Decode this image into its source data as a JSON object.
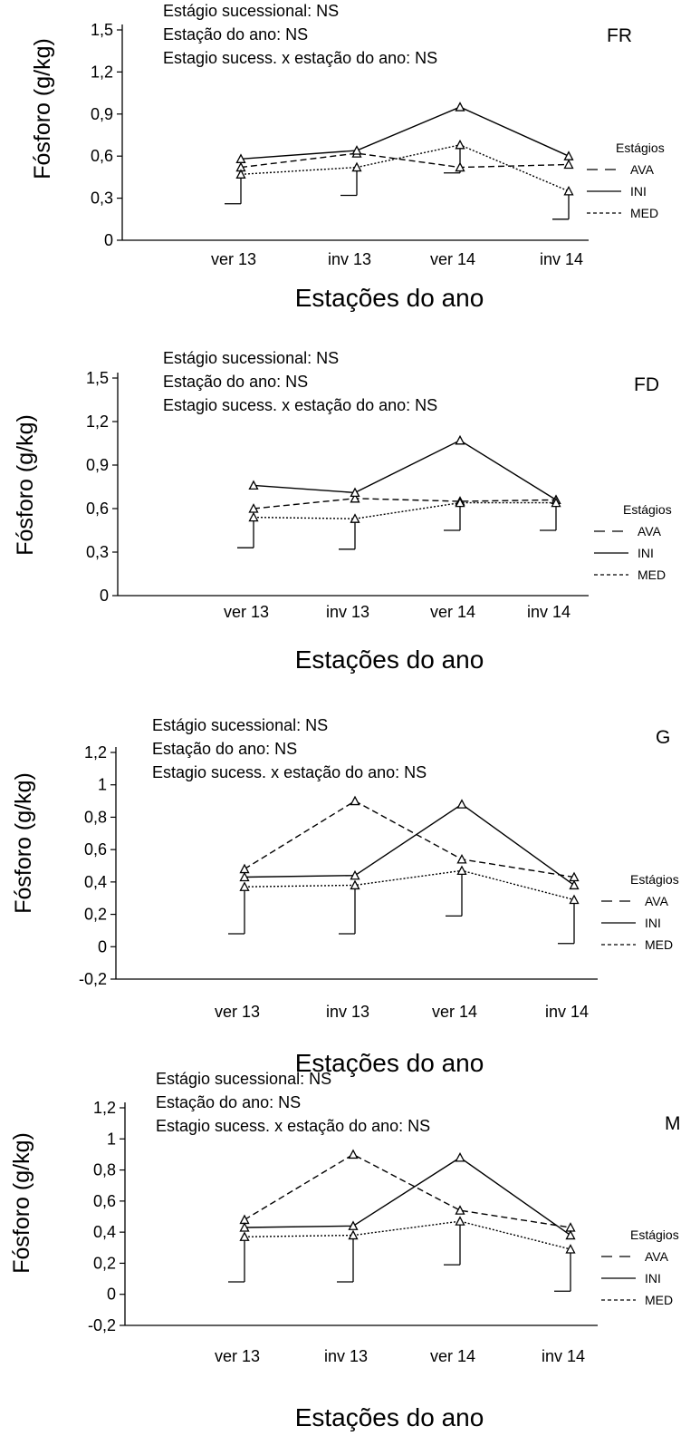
{
  "chart_data": [
    {
      "type": "line",
      "panel": "FR",
      "stats": [
        "Estágio sucessional: NS",
        "Estação do ano: NS",
        "Estagio sucess. x estação do ano: NS"
      ],
      "ylabel": "Fósforo (g/kg)",
      "xlabel": "Estações do ano",
      "categories": [
        "ver 13",
        "inv 13",
        "ver 14",
        "inv 14"
      ],
      "ylim": [
        0,
        1.5
      ],
      "yticks": [
        0,
        0.3,
        0.6,
        0.9,
        1.2,
        1.5
      ],
      "ytick_labels": [
        "0",
        "0,3",
        "0,6",
        "0,9",
        "1,2",
        "1,5"
      ],
      "legend_title": "Estágios",
      "series": [
        {
          "name": "AVA",
          "style": "dashed",
          "values": [
            0.52,
            0.62,
            0.52,
            0.54
          ]
        },
        {
          "name": "INI",
          "style": "solid",
          "values": [
            0.58,
            0.64,
            0.95,
            0.6
          ]
        },
        {
          "name": "MED",
          "style": "dotted",
          "values": [
            0.47,
            0.52,
            0.68,
            0.35
          ]
        }
      ],
      "error_bars": [
        {
          "low": 0.26,
          "high": 0.47
        },
        {
          "low": 0.32,
          "high": 0.52
        },
        {
          "low": 0.48,
          "high": 0.68
        },
        {
          "low": 0.15,
          "high": 0.35
        }
      ]
    },
    {
      "type": "line",
      "panel": "FD",
      "stats": [
        "Estágio sucessional: NS",
        "Estação do ano: NS",
        "Estagio sucess. x estação do ano: NS"
      ],
      "ylabel": "Fósforo (g/kg)",
      "xlabel": "Estações do ano",
      "categories": [
        "ver 13",
        "inv 13",
        "ver 14",
        "inv 14"
      ],
      "ylim": [
        0,
        1.5
      ],
      "yticks": [
        0,
        0.3,
        0.6,
        0.9,
        1.2,
        1.5
      ],
      "ytick_labels": [
        "0",
        "0,3",
        "0,6",
        "0,9",
        "1,2",
        "1,5"
      ],
      "legend_title": "Estágios",
      "series": [
        {
          "name": "AVA",
          "style": "dashed",
          "values": [
            0.6,
            0.67,
            0.65,
            0.66
          ]
        },
        {
          "name": "INI",
          "style": "solid",
          "values": [
            0.76,
            0.71,
            1.07,
            0.66
          ]
        },
        {
          "name": "MED",
          "style": "dotted",
          "values": [
            0.54,
            0.53,
            0.64,
            0.64
          ]
        }
      ],
      "error_bars": [
        {
          "low": 0.33,
          "high": 0.54
        },
        {
          "low": 0.32,
          "high": 0.53
        },
        {
          "low": 0.45,
          "high": 0.64
        },
        {
          "low": 0.45,
          "high": 0.64
        }
      ]
    },
    {
      "type": "line",
      "panel": "G",
      "stats": [
        "Estágio sucessional: NS",
        "Estação do ano: NS",
        "Estagio sucess. x estação do ano: NS"
      ],
      "ylabel": "Fósforo (g/kg)",
      "xlabel": "Estações do ano",
      "categories": [
        "ver 13",
        "inv 13",
        "ver 14",
        "inv 14"
      ],
      "ylim": [
        -0.2,
        1.2
      ],
      "yticks": [
        -0.2,
        0,
        0.2,
        0.4,
        0.6,
        0.8,
        1,
        1.2
      ],
      "ytick_labels": [
        "-0,2",
        "0",
        "0,2",
        "0,4",
        "0,6",
        "0,8",
        "1",
        "1,2"
      ],
      "legend_title": "Estágios",
      "series": [
        {
          "name": "AVA",
          "style": "dashed",
          "values": [
            0.48,
            0.9,
            0.54,
            0.43
          ]
        },
        {
          "name": "INI",
          "style": "solid",
          "values": [
            0.43,
            0.44,
            0.88,
            0.38
          ]
        },
        {
          "name": "MED",
          "style": "dotted",
          "values": [
            0.37,
            0.38,
            0.47,
            0.29
          ]
        }
      ],
      "error_bars": [
        {
          "low": 0.08,
          "high": 0.37
        },
        {
          "low": 0.08,
          "high": 0.38
        },
        {
          "low": 0.19,
          "high": 0.47
        },
        {
          "low": 0.02,
          "high": 0.29
        }
      ]
    },
    {
      "type": "line",
      "panel": "M",
      "stats": [
        "Estágio sucessional: NS",
        "Estação do ano: NS",
        "Estagio sucess. x estação do ano: NS"
      ],
      "ylabel": "Fósforo (g/kg)",
      "xlabel": "Estações do ano",
      "categories": [
        "ver 13",
        "inv 13",
        "ver 14",
        "inv 14"
      ],
      "ylim": [
        -0.2,
        1.2
      ],
      "yticks": [
        -0.2,
        0,
        0.2,
        0.4,
        0.6,
        0.8,
        1,
        1.2
      ],
      "ytick_labels": [
        "-0,2",
        "0",
        "0,2",
        "0,4",
        "0,6",
        "0,8",
        "1",
        "1,2"
      ],
      "legend_title": "Estágios",
      "series": [
        {
          "name": "AVA",
          "style": "dashed",
          "values": [
            0.48,
            0.9,
            0.54,
            0.43
          ]
        },
        {
          "name": "INI",
          "style": "solid",
          "values": [
            0.43,
            0.44,
            0.88,
            0.38
          ]
        },
        {
          "name": "MED",
          "style": "dotted",
          "values": [
            0.37,
            0.38,
            0.47,
            0.29
          ]
        }
      ],
      "error_bars": [
        {
          "low": 0.08,
          "high": 0.37
        },
        {
          "low": 0.08,
          "high": 0.38
        },
        {
          "low": 0.19,
          "high": 0.47
        },
        {
          "low": 0.02,
          "high": 0.29
        }
      ]
    }
  ]
}
